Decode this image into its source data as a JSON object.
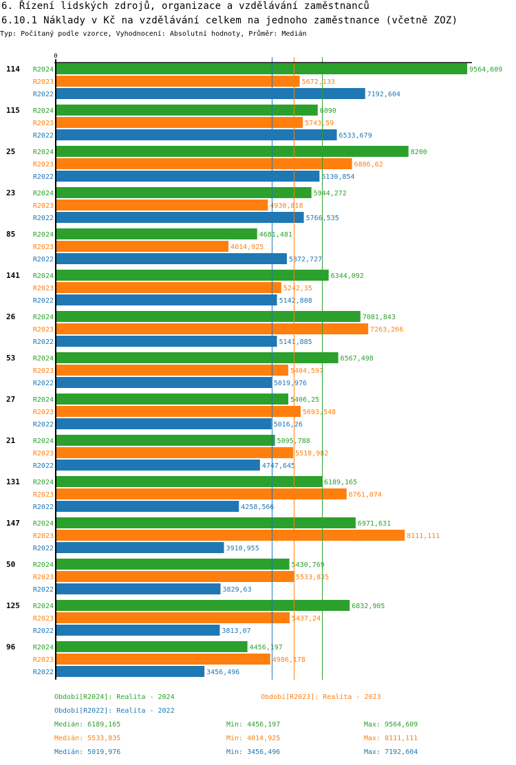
{
  "header": {
    "title": "6. Řízení lidských zdrojů, organizace a vzdělávání zaměstnanců",
    "subtitle": "6.10.1 Náklady v Kč na vzdělávání celkem na jednoho zaměstnance (včetně ZOZ)",
    "info": "Typ: Počítaný podle vzorce, Vyhodnocení: Absolutní hodnoty, Průměr: Medián"
  },
  "colors": {
    "R2024": "#2ca02c",
    "R2023": "#ff7f0e",
    "R2022": "#1f77b4",
    "axis": "#000000"
  },
  "chart_data": {
    "type": "bar",
    "orientation": "horizontal",
    "title": "6.10.1 Náklady v Kč na vzdělávání celkem na jednoho zaměstnance (včetně ZOZ)",
    "xlabel": "",
    "ylabel": "",
    "x_tick_labels": [
      "0"
    ],
    "xlim": [
      0,
      9660
    ],
    "grid": false,
    "categories": [
      "114",
      "115",
      "25",
      "23",
      "85",
      "141",
      "26",
      "53",
      "27",
      "21",
      "131",
      "147",
      "50",
      "125",
      "96"
    ],
    "series": [
      {
        "name": "R2024",
        "color": "#2ca02c",
        "values": [
          9564.609,
          6090,
          8200,
          5944.272,
          4681.481,
          6344.092,
          7081.843,
          6567.498,
          5406.25,
          5095.788,
          6189.165,
          6971.631,
          5430.769,
          6832.905,
          4456.197
        ],
        "labels": [
          "9564,609",
          "6090",
          "8200",
          "5944,272",
          "4681,481",
          "6344,092",
          "7081,843",
          "6567,498",
          "5406,25",
          "5095,788",
          "6189,165",
          "6971,631",
          "5430,769",
          "6832,905",
          "4456,197"
        ]
      },
      {
        "name": "R2023",
        "color": "#ff7f0e",
        "values": [
          5672.133,
          5743.59,
          6886.62,
          4930.818,
          4014.925,
          5242.35,
          7263.266,
          5404.597,
          5693.548,
          5518.982,
          6761.074,
          8111.111,
          5533.835,
          5437.24,
          4986.178
        ],
        "labels": [
          "5672,133",
          "5743,59",
          "6886,62",
          "4930,818",
          "4014,925",
          "5242,35",
          "7263,266",
          "5404,597",
          "5693,548",
          "5518,982",
          "6761,074",
          "8111,111",
          "5533,835",
          "5437,24",
          "4986,178"
        ]
      },
      {
        "name": "R2022",
        "color": "#1f77b4",
        "values": [
          7192.604,
          6533.679,
          6130.854,
          5766.535,
          5372.727,
          5142.808,
          5141.885,
          5019.976,
          5016.26,
          4747.645,
          4258.566,
          3910.955,
          3829.63,
          3813.07,
          3456.496
        ],
        "labels": [
          "7192,604",
          "6533,679",
          "6130,854",
          "5766,535",
          "5372,727",
          "5142,808",
          "5141,885",
          "5019,976",
          "5016,26",
          "4747,645",
          "4258,566",
          "3910,955",
          "3829,63",
          "3813,07",
          "3456,496"
        ]
      }
    ],
    "median_lines": [
      {
        "series": "R2022",
        "value": 5019.976
      },
      {
        "series": "R2023",
        "value": 5533.835
      },
      {
        "series": "R2024",
        "value": 6189.165
      }
    ],
    "legend": [
      {
        "series": "R2024",
        "text": "Období[R2024]: Realita - 2024"
      },
      {
        "series": "R2023",
        "text": "Období[R2023]: Realita - 2023"
      },
      {
        "series": "R2022",
        "text": "Období[R2022]: Realita - 2022"
      }
    ],
    "stats": [
      {
        "series": "R2024",
        "median": "Medián: 6189,165",
        "min": "Min: 4456,197",
        "max": "Max: 9564,609"
      },
      {
        "series": "R2023",
        "median": "Medián: 5533,835",
        "min": "Min: 4014,925",
        "max": "Max: 8111,111"
      },
      {
        "series": "R2022",
        "median": "Medián: 5019,976",
        "min": "Min: 3456,496",
        "max": "Max: 7192,604"
      }
    ]
  }
}
